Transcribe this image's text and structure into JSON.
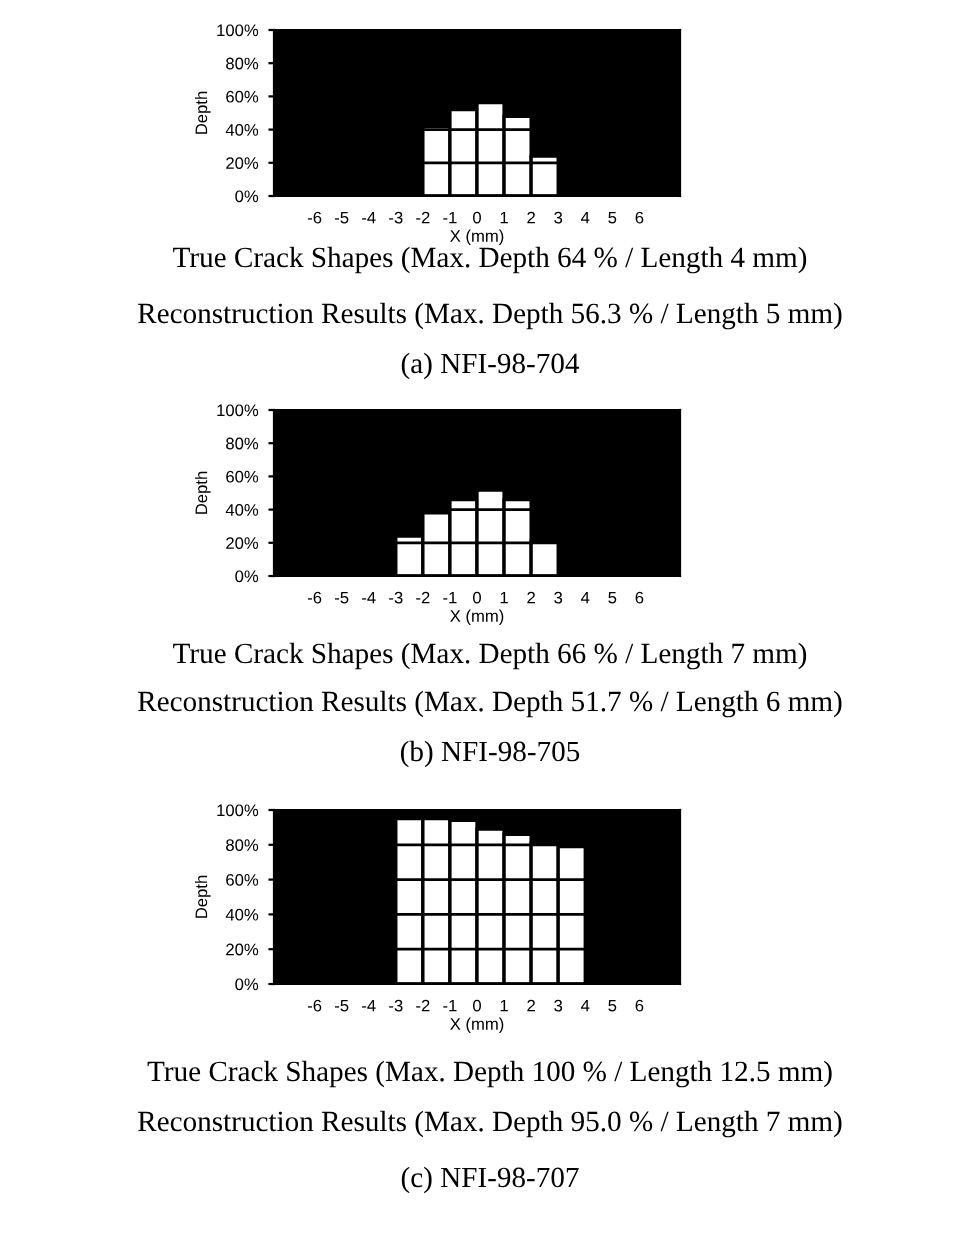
{
  "chart_data": [
    {
      "type": "bar",
      "x": [
        -1.5,
        -0.5,
        0.5,
        1.5,
        2.5
      ],
      "values": [
        42,
        52,
        56.3,
        48,
        24
      ],
      "color": "#ffffff",
      "xlim": [
        -7.5,
        7.5
      ],
      "ylim": [
        0,
        100
      ],
      "xticks": [
        -6,
        -5,
        -4,
        -3,
        -2,
        -1,
        0,
        1,
        2,
        3,
        4,
        5,
        6
      ],
      "yticks": [
        {
          "value": 0,
          "label": "0%"
        },
        {
          "value": 20,
          "label": "20%"
        },
        {
          "value": 40,
          "label": "40%"
        },
        {
          "value": 60,
          "label": "60%"
        },
        {
          "value": 80,
          "label": "80%"
        },
        {
          "value": 100,
          "label": "100%"
        }
      ],
      "xlabel": "X (mm)",
      "ylabel": "Depth",
      "grid": "y",
      "annotations": [
        "True Crack Shapes (Max. Depth 64 % / Length 4 mm)",
        "Reconstruction Results (Max. Depth 56.3 % / Length 5 mm)",
        "(a) NFI-98-704"
      ]
    },
    {
      "type": "bar",
      "x": [
        -2.5,
        -1.5,
        -0.5,
        0.5,
        1.5,
        2.5
      ],
      "values": [
        24,
        38,
        46,
        51.7,
        46,
        21
      ],
      "color": "#ffffff",
      "xlim": [
        -7.5,
        7.5
      ],
      "ylim": [
        0,
        100
      ],
      "xticks": [
        -6,
        -5,
        -4,
        -3,
        -2,
        -1,
        0,
        1,
        2,
        3,
        4,
        5,
        6
      ],
      "yticks": [
        {
          "value": 0,
          "label": "0%"
        },
        {
          "value": 20,
          "label": "20%"
        },
        {
          "value": 40,
          "label": "40%"
        },
        {
          "value": 60,
          "label": "60%"
        },
        {
          "value": 80,
          "label": "80%"
        },
        {
          "value": 100,
          "label": "100%"
        }
      ],
      "xlabel": "X (mm)",
      "ylabel": "Depth",
      "grid": "y",
      "annotations": [
        "True Crack Shapes (Max. Depth 66 % / Length 7 mm)",
        "Reconstruction Results (Max. Depth 51.7 % / Length 6 mm)",
        "(b) NFI-98-705"
      ]
    },
    {
      "type": "bar",
      "x": [
        -2.5,
        -1.5,
        -0.5,
        0.5,
        1.5,
        2.5,
        3.5
      ],
      "values": [
        95.0,
        95,
        94,
        89,
        86,
        81,
        79
      ],
      "color": "#ffffff",
      "xlim": [
        -7.5,
        7.5
      ],
      "ylim": [
        0,
        100
      ],
      "xticks": [
        -6,
        -5,
        -4,
        -3,
        -2,
        -1,
        0,
        1,
        2,
        3,
        4,
        5,
        6
      ],
      "yticks": [
        {
          "value": 0,
          "label": "0%"
        },
        {
          "value": 20,
          "label": "20%"
        },
        {
          "value": 40,
          "label": "40%"
        },
        {
          "value": 60,
          "label": "60%"
        },
        {
          "value": 80,
          "label": "80%"
        },
        {
          "value": 100,
          "label": "100%"
        }
      ],
      "xlabel": "X (mm)",
      "ylabel": "Depth",
      "grid": "y",
      "annotations": [
        "True Crack Shapes (Max. Depth 100 % / Length 12.5 mm)",
        "Reconstruction Results (Max. Depth 95.0 % / Length 7 mm)",
        "(c) NFI-98-707"
      ]
    }
  ]
}
